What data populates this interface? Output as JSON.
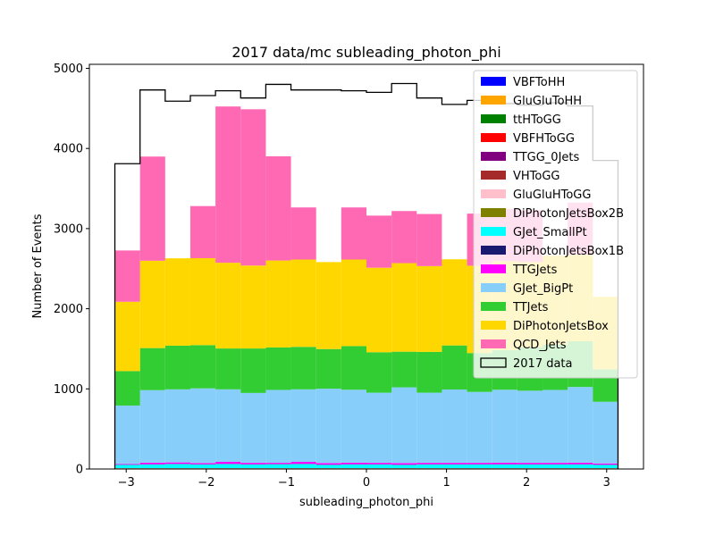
{
  "chart_data": {
    "type": "bar",
    "title": "2017 data/mc subleading_photon_phi",
    "xlabel": "subleading_photon_phi",
    "ylabel": "Number of Events",
    "xlim": [
      -3.46,
      3.46
    ],
    "ylim": [
      0,
      5050
    ],
    "x_ticks": [
      -3,
      -2,
      -1,
      0,
      1,
      2,
      3
    ],
    "x_tick_labels": [
      "−3",
      "−2",
      "−1",
      "0",
      "1",
      "2",
      "3"
    ],
    "y_ticks": [
      0,
      1000,
      2000,
      3000,
      4000,
      5000
    ],
    "y_tick_labels": [
      "0",
      "1000",
      "2000",
      "3000",
      "4000",
      "5000"
    ],
    "stacked": true,
    "legend_position": "top-right",
    "bin_edges": [
      -3.1416,
      -2.8274,
      -2.5133,
      -2.1991,
      -1.885,
      -1.5708,
      -1.2566,
      -0.9425,
      -0.6283,
      -0.3142,
      0.0,
      0.3142,
      0.6283,
      0.9425,
      1.2566,
      1.5708,
      1.885,
      2.1991,
      2.5133,
      2.8274,
      3.1416
    ],
    "series": [
      {
        "name": "VBFToHH",
        "color": "#0000ff",
        "values": [
          0,
          0,
          0,
          0,
          0,
          0,
          0,
          0,
          0,
          0,
          0,
          0,
          0,
          0,
          0,
          0,
          0,
          0,
          0,
          0
        ]
      },
      {
        "name": "GluGluToHH",
        "color": "#ffa500",
        "values": [
          0,
          0,
          0,
          0,
          0,
          0,
          0,
          0,
          0,
          0,
          0,
          0,
          0,
          0,
          0,
          0,
          0,
          0,
          0,
          0
        ]
      },
      {
        "name": "ttHToGG",
        "color": "#008000",
        "values": [
          2,
          2,
          2,
          2,
          2,
          2,
          2,
          2,
          2,
          2,
          2,
          2,
          2,
          2,
          2,
          2,
          2,
          2,
          2,
          2
        ]
      },
      {
        "name": "VBFHToGG",
        "color": "#ff0000",
        "values": [
          1,
          1,
          1,
          1,
          1,
          1,
          1,
          1,
          1,
          1,
          1,
          1,
          1,
          1,
          1,
          1,
          1,
          1,
          1,
          1
        ]
      },
      {
        "name": "TTGG_0Jets",
        "color": "#800080",
        "values": [
          3,
          3,
          3,
          3,
          3,
          3,
          3,
          3,
          3,
          3,
          3,
          3,
          3,
          3,
          3,
          3,
          3,
          3,
          3,
          3
        ]
      },
      {
        "name": "VHToGG",
        "color": "#a52a2a",
        "values": [
          1,
          1,
          1,
          1,
          1,
          1,
          1,
          1,
          1,
          1,
          1,
          1,
          1,
          1,
          1,
          1,
          1,
          1,
          1,
          1
        ]
      },
      {
        "name": "GluGluHToGG",
        "color": "#ffc0cb",
        "values": [
          2,
          2,
          2,
          2,
          2,
          2,
          2,
          2,
          2,
          2,
          2,
          2,
          2,
          2,
          2,
          2,
          2,
          2,
          2,
          2
        ]
      },
      {
        "name": "DiPhotonJetsBox2B",
        "color": "#808000",
        "values": [
          2,
          2,
          2,
          2,
          2,
          2,
          2,
          2,
          2,
          2,
          2,
          2,
          2,
          2,
          2,
          2,
          2,
          2,
          2,
          2
        ]
      },
      {
        "name": "GJet_SmallPt",
        "color": "#00ffff",
        "values": [
          40,
          45,
          50,
          45,
          50,
          45,
          48,
          50,
          40,
          45,
          45,
          40,
          45,
          45,
          45,
          45,
          45,
          45,
          45,
          40
        ]
      },
      {
        "name": "DiPhotonJetsBox1B",
        "color": "#191970",
        "values": [
          3,
          3,
          3,
          3,
          3,
          3,
          3,
          3,
          3,
          3,
          3,
          3,
          3,
          3,
          3,
          3,
          3,
          3,
          3,
          3
        ]
      },
      {
        "name": "TTGJets",
        "color": "#ff00ff",
        "values": [
          8,
          20,
          18,
          15,
          25,
          18,
          15,
          25,
          20,
          20,
          18,
          20,
          18,
          18,
          18,
          20,
          18,
          18,
          20,
          15
        ]
      },
      {
        "name": "GJet_BigPt",
        "color": "#87cefa",
        "values": [
          730,
          905,
          912,
          932,
          905,
          872,
          910,
          905,
          928,
          910,
          875,
          945,
          875,
          915,
          885,
          910,
          900,
          910,
          945,
          770
        ]
      },
      {
        "name": "TTJets",
        "color": "#32cd32",
        "values": [
          430,
          525,
          545,
          540,
          510,
          555,
          530,
          530,
          495,
          545,
          505,
          445,
          510,
          550,
          485,
          495,
          540,
          565,
          570,
          405
        ]
      },
      {
        "name": "DiPhotonJetsBox",
        "color": "#ffd700",
        "values": [
          865,
          1090,
          1090,
          1085,
          1070,
          1035,
          1085,
          1090,
          1085,
          1080,
          1055,
          1105,
          1070,
          1075,
          1090,
          1110,
          1065,
          1110,
          1080,
          905
        ]
      },
      {
        "name": "QCD_Jets",
        "color": "#ff69b4",
        "values": [
          640,
          1300,
          0,
          650,
          1950,
          1950,
          1300,
          650,
          0,
          650,
          650,
          650,
          650,
          0,
          650,
          650,
          650,
          0,
          650,
          0
        ]
      }
    ],
    "data": {
      "name": "2017 data",
      "color": "#000000",
      "values": [
        3810,
        4730,
        4590,
        4660,
        4720,
        4630,
        4800,
        4730,
        4730,
        4720,
        4700,
        4810,
        4630,
        4550,
        4600,
        4560,
        4540,
        4570,
        4530,
        3850
      ]
    }
  }
}
